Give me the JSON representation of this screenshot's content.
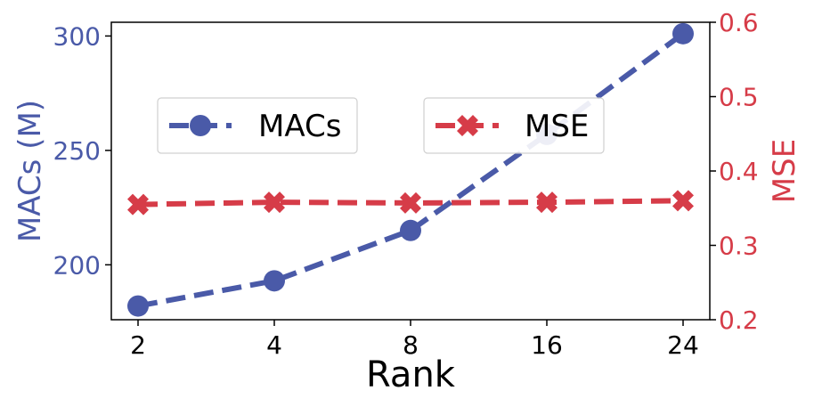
{
  "chart_data": {
    "type": "line",
    "categories": [
      "2",
      "4",
      "8",
      "16",
      "24"
    ],
    "xlabel": "Rank",
    "y_left": {
      "label": "MACs (M)",
      "ticks": [
        "200",
        "250",
        "300"
      ],
      "ylim": [
        176,
        306
      ],
      "color": "#4a5aa8"
    },
    "y_right": {
      "label": "MSE",
      "ticks": [
        "0.2",
        "0.3",
        "0.4",
        "0.5",
        "0.6"
      ],
      "ylim": [
        0.2,
        0.6
      ],
      "color": "#d63c48"
    },
    "series": [
      {
        "name": "MACs",
        "axis": "left",
        "marker": "circle",
        "line": "dashed",
        "values": [
          182,
          193,
          215,
          257,
          301
        ]
      },
      {
        "name": "MSE",
        "axis": "right",
        "marker": "x",
        "line": "dashed",
        "values": [
          0.355,
          0.358,
          0.357,
          0.358,
          0.36
        ]
      }
    ],
    "legend": [
      "MACs",
      "MSE"
    ],
    "grid": false
  }
}
